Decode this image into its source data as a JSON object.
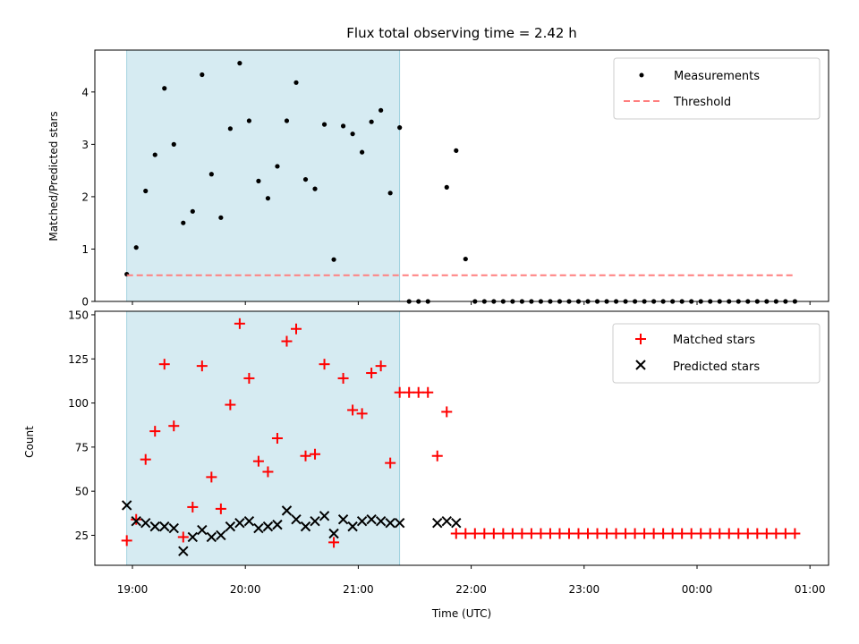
{
  "chart_data": {
    "title": "Flux total observing time = 2.42 h",
    "x_axis": {
      "label": "Time (UTC)",
      "tick_labels": [
        "19:00",
        "20:00",
        "21:00",
        "22:00",
        "23:00",
        "00:00",
        "01:00"
      ],
      "range": [
        "18:45",
        "01:10"
      ]
    },
    "shaded_region": {
      "from": "18:57",
      "to": "21:22",
      "color": "#add8e6"
    },
    "times": [
      "18:57",
      "19:02",
      "19:07",
      "19:12",
      "19:17",
      "19:22",
      "19:27",
      "19:32",
      "19:37",
      "19:42",
      "19:47",
      "19:52",
      "19:57",
      "20:02",
      "20:07",
      "20:12",
      "20:17",
      "20:22",
      "20:27",
      "20:32",
      "20:37",
      "20:42",
      "20:47",
      "20:52",
      "20:57",
      "21:02",
      "21:07",
      "21:12",
      "21:17",
      "21:22"
    ],
    "panels": [
      {
        "type": "scatter",
        "ylabel": "Matched/Predicted stars",
        "ylim": [
          0,
          4.8
        ],
        "yticks": [
          0,
          1,
          2,
          3,
          4
        ],
        "legend_position": "upper right",
        "grid": false,
        "series": [
          {
            "name": "Measurements",
            "marker": "dot",
            "color": "#000000",
            "x": [
              "18:57",
              "19:02",
              "19:07",
              "19:12",
              "19:17",
              "19:22",
              "19:27",
              "19:32",
              "19:37",
              "19:42",
              "19:47",
              "19:52",
              "19:57",
              "20:02",
              "20:07",
              "20:12",
              "20:17",
              "20:22",
              "20:27",
              "20:32",
              "20:37",
              "20:42",
              "20:47",
              "20:52",
              "20:57",
              "21:02",
              "21:07",
              "21:12",
              "21:17",
              "21:22",
              "21:27",
              "21:32",
              "21:37",
              "21:42",
              "21:47",
              "21:52",
              "21:57",
              "22:02",
              "22:07",
              "22:12",
              "22:17",
              "22:22",
              "22:27",
              "22:32",
              "22:37",
              "22:42",
              "22:47",
              "22:52",
              "22:57",
              "23:02",
              "23:07",
              "23:12",
              "23:17",
              "23:22",
              "23:27",
              "23:32",
              "23:37",
              "23:42",
              "23:47",
              "23:52",
              "23:57",
              "00:02",
              "00:07",
              "00:12",
              "00:17",
              "00:22",
              "00:27",
              "00:32",
              "00:37",
              "00:42",
              "00:47",
              "00:52"
            ],
            "y": [
              0.52,
              1.03,
              2.11,
              2.8,
              4.07,
              3.0,
              1.5,
              1.72,
              4.33,
              2.43,
              1.6,
              3.3,
              4.55,
              3.45,
              2.3,
              1.97,
              2.58,
              3.45,
              4.18,
              2.33,
              2.15,
              3.38,
              0.8,
              3.35,
              3.2,
              2.85,
              3.43,
              3.65,
              2.07,
              3.32,
              0,
              0,
              0,
              null,
              2.18,
              2.88,
              0.81,
              0,
              0,
              0,
              0,
              0,
              0,
              0,
              0,
              0,
              0,
              0,
              0,
              0,
              0,
              0,
              0,
              0,
              0,
              0,
              0,
              0,
              0,
              0,
              0,
              0,
              0,
              0,
              0,
              0,
              0,
              0,
              0,
              0,
              0,
              0
            ]
          },
          {
            "name": "Threshold",
            "style": "dashed-line",
            "color": "#ff7f7f",
            "x": [
              "18:57",
              "00:52"
            ],
            "y": [
              0.5,
              0.5
            ]
          }
        ]
      },
      {
        "type": "scatter",
        "ylabel": "Count",
        "ylim": [
          8,
          152
        ],
        "yticks": [
          25,
          50,
          75,
          100,
          125,
          150
        ],
        "legend_position": "upper right",
        "grid": false,
        "series": [
          {
            "name": "Matched stars",
            "marker": "plus",
            "color": "#ff0000",
            "x": [
              "18:57",
              "19:02",
              "19:07",
              "19:12",
              "19:17",
              "19:22",
              "19:27",
              "19:32",
              "19:37",
              "19:42",
              "19:47",
              "19:52",
              "19:57",
              "20:02",
              "20:07",
              "20:12",
              "20:17",
              "20:22",
              "20:27",
              "20:32",
              "20:37",
              "20:42",
              "20:47",
              "20:52",
              "20:57",
              "21:02",
              "21:07",
              "21:12",
              "21:17",
              "21:22",
              "21:27",
              "21:32",
              "21:37",
              "21:42",
              "21:47",
              "21:52",
              "21:57",
              "22:02",
              "22:07",
              "22:12",
              "22:17",
              "22:22",
              "22:27",
              "22:32",
              "22:37",
              "22:42",
              "22:47",
              "22:52",
              "22:57",
              "23:02",
              "23:07",
              "23:12",
              "23:17",
              "23:22",
              "23:27",
              "23:32",
              "23:37",
              "23:42",
              "23:47",
              "23:52",
              "23:57",
              "00:02",
              "00:07",
              "00:12",
              "00:17",
              "00:22",
              "00:27",
              "00:32",
              "00:37",
              "00:42",
              "00:47",
              "00:52"
            ],
            "y": [
              22,
              34,
              68,
              84,
              122,
              87,
              24,
              41,
              121,
              58,
              40,
              99,
              145,
              114,
              67,
              61,
              80,
              135,
              142,
              70,
              71,
              122,
              21,
              114,
              96,
              94,
              117,
              121,
              66,
              106,
              106,
              106,
              106,
              70,
              95,
              26,
              26,
              26,
              26,
              26,
              26,
              26,
              26,
              26,
              26,
              26,
              26,
              26,
              26,
              26,
              26,
              26,
              26,
              26,
              26,
              26,
              26,
              26,
              26,
              26,
              26,
              26,
              26,
              26,
              26,
              26,
              26,
              26,
              26,
              26,
              26,
              26
            ]
          },
          {
            "name": "Predicted stars",
            "marker": "x",
            "color": "#000000",
            "x": [
              "18:57",
              "19:02",
              "19:07",
              "19:12",
              "19:17",
              "19:22",
              "19:27",
              "19:32",
              "19:37",
              "19:42",
              "19:47",
              "19:52",
              "19:57",
              "20:02",
              "20:07",
              "20:12",
              "20:17",
              "20:22",
              "20:27",
              "20:32",
              "20:37",
              "20:42",
              "20:47",
              "20:52",
              "20:57",
              "21:02",
              "21:07",
              "21:12",
              "21:17",
              "21:22",
              "21:42",
              "21:47",
              "21:52"
            ],
            "y": [
              42,
              33,
              32,
              30,
              30,
              29,
              16,
              24,
              28,
              24,
              25,
              30,
              32,
              33,
              29,
              30,
              31,
              39,
              34,
              30,
              33,
              36,
              26,
              34,
              30,
              33,
              34,
              33,
              32,
              32,
              32,
              33,
              32
            ]
          }
        ]
      }
    ]
  }
}
